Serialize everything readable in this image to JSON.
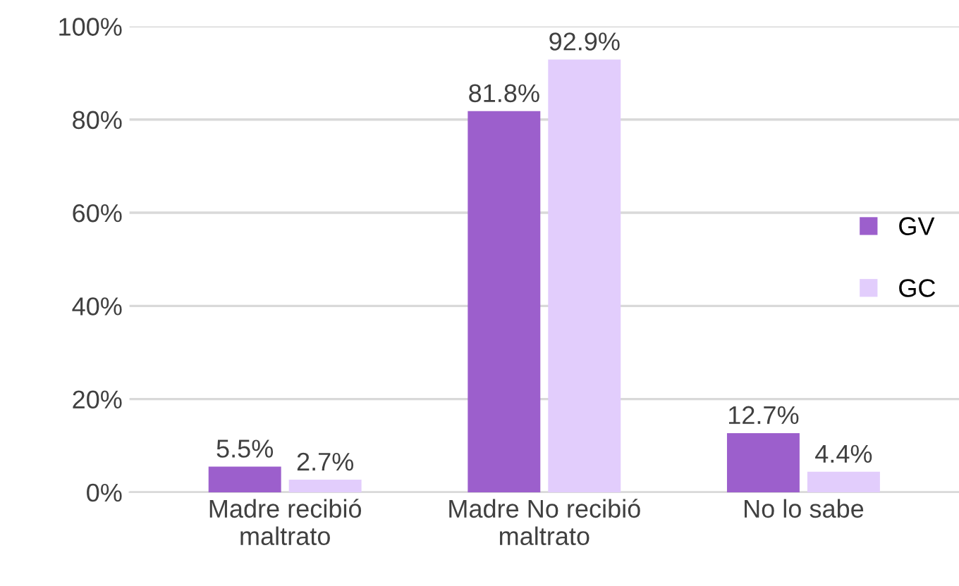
{
  "chart_data": {
    "type": "bar",
    "categories": [
      "Madre recibió\nmaltrato",
      "Madre No recibió\nmaltrato",
      "No lo sabe"
    ],
    "series": [
      {
        "name": "GV",
        "color": "#9c5fcc",
        "values": [
          5.5,
          81.8,
          12.7
        ],
        "value_labels": [
          "5.5%",
          "81.8%",
          "12.7%"
        ]
      },
      {
        "name": "GC",
        "color": "#e2cdfc",
        "values": [
          2.7,
          92.9,
          4.4
        ],
        "value_labels": [
          "2.7%",
          "92.9%",
          "4.4%"
        ]
      }
    ],
    "ylim": [
      0,
      100
    ],
    "yticks": [
      {
        "value": 0,
        "label": "0%"
      },
      {
        "value": 20,
        "label": "20%"
      },
      {
        "value": 40,
        "label": "40%"
      },
      {
        "value": 60,
        "label": "60%"
      },
      {
        "value": 80,
        "label": "80%"
      },
      {
        "value": 100,
        "label": "100%"
      }
    ],
    "grid": "y",
    "legend": "right"
  }
}
